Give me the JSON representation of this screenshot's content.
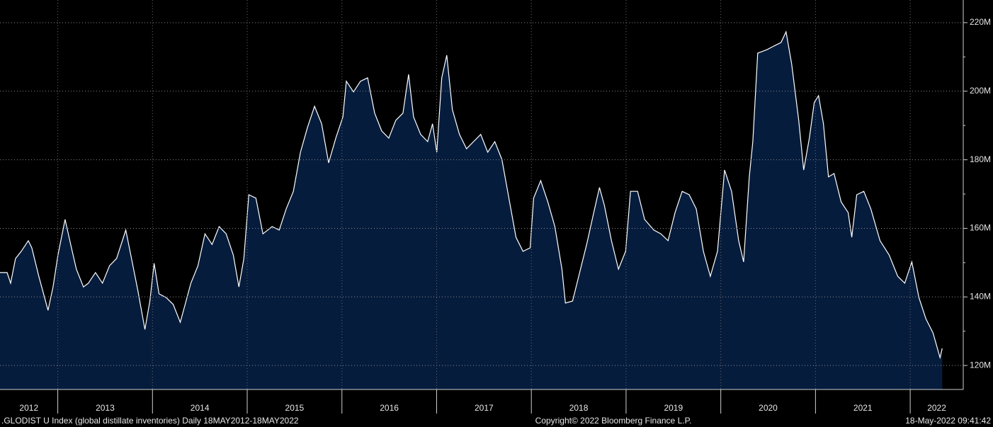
{
  "chart_data": {
    "type": "area",
    "series": [
      {
        "color": "#061c3d",
        "line_color": "#ffffff",
        "x": [
          2012.39,
          2012.465,
          2012.502,
          2012.554,
          2012.614,
          2012.689,
          2012.726,
          2012.8,
          2012.897,
          2012.95,
          2013.002,
          2013.077,
          2013.136,
          2013.196,
          2013.271,
          2013.323,
          2013.398,
          2013.472,
          2013.547,
          2013.621,
          2013.718,
          2013.771,
          2013.845,
          2013.92,
          2013.972,
          2014.017,
          2014.069,
          2014.144,
          2014.218,
          2014.293,
          2014.345,
          2014.405,
          2014.48,
          2014.554,
          2014.629,
          2014.704,
          2014.778,
          2014.853,
          2014.912,
          2014.965,
          2015.017,
          2015.092,
          2015.166,
          2015.263,
          2015.338,
          2015.412,
          2015.487,
          2015.562,
          2015.636,
          2015.711,
          2015.786,
          2015.86,
          2015.935,
          2016.01,
          2016.047,
          2016.122,
          2016.196,
          2016.271,
          2016.346,
          2016.42,
          2016.495,
          2016.569,
          2016.644,
          2016.704,
          2016.756,
          2016.831,
          2016.905,
          2016.957,
          2017.002,
          2017.054,
          2017.107,
          2017.166,
          2017.241,
          2017.316,
          2017.39,
          2017.465,
          2017.539,
          2017.614,
          2017.689,
          2017.763,
          2017.838,
          2017.912,
          2017.987,
          2018.024,
          2018.099,
          2018.174,
          2018.248,
          2018.323,
          2018.36,
          2018.435,
          2018.51,
          2018.584,
          2018.659,
          2018.719,
          2018.771,
          2018.846,
          2018.92,
          2018.995,
          2019.047,
          2019.122,
          2019.196,
          2019.293,
          2019.368,
          2019.443,
          2019.517,
          2019.592,
          2019.666,
          2019.741,
          2019.816,
          2019.89,
          2019.965,
          2020.04,
          2020.114,
          2020.189,
          2020.241,
          2020.301,
          2020.338,
          2020.39,
          2020.487,
          2020.562,
          2020.636,
          2020.689,
          2020.748,
          2020.823,
          2020.875,
          2020.935,
          2020.987,
          2021.032,
          2021.084,
          2021.137,
          2021.196,
          2021.271,
          2021.345,
          2021.383,
          2021.435,
          2021.51,
          2021.584,
          2021.681,
          2021.778,
          2021.868,
          2021.942,
          2022.017,
          2022.092,
          2022.166,
          2022.241,
          2022.315,
          2022.338
        ],
        "values": [
          147.1,
          147.1,
          144.0,
          151.2,
          153.3,
          156.4,
          154.3,
          146.0,
          136.1,
          142.9,
          152.2,
          162.6,
          155.3,
          148.1,
          142.9,
          144.0,
          147.1,
          144.0,
          149.1,
          151.2,
          159.5,
          152.2,
          141.9,
          130.5,
          138.8,
          149.8,
          140.9,
          139.8,
          137.8,
          132.6,
          137.8,
          144.0,
          149.1,
          158.4,
          155.3,
          160.5,
          158.4,
          152.2,
          142.9,
          151.2,
          169.8,
          168.8,
          158.4,
          160.5,
          159.5,
          165.7,
          170.8,
          182.2,
          189.4,
          195.6,
          190.5,
          179.1,
          186.3,
          192.5,
          202.9,
          199.8,
          202.9,
          203.9,
          193.6,
          188.4,
          186.3,
          191.5,
          193.6,
          204.9,
          192.5,
          187.4,
          185.3,
          190.5,
          182.2,
          203.9,
          210.5,
          194.6,
          187.4,
          183.2,
          185.3,
          187.4,
          182.2,
          185.3,
          180.1,
          168.8,
          157.4,
          153.3,
          154.3,
          168.8,
          173.9,
          167.7,
          160.5,
          148.1,
          138.2,
          138.8,
          147.1,
          155.3,
          164.6,
          171.9,
          166.7,
          156.4,
          148.1,
          153.3,
          170.8,
          170.8,
          162.6,
          159.5,
          158.4,
          156.4,
          164.6,
          170.8,
          169.8,
          165.7,
          153.3,
          146.0,
          153.3,
          177.0,
          170.8,
          156.4,
          150.2,
          175.0,
          185.3,
          211.1,
          212.1,
          213.2,
          214.2,
          217.3,
          208.0,
          191.5,
          177.0,
          186.3,
          196.7,
          198.7,
          190.5,
          175.0,
          176.0,
          167.7,
          164.6,
          157.4,
          169.8,
          170.8,
          165.7,
          156.4,
          152.2,
          146.0,
          144.0,
          150.2,
          139.8,
          133.6,
          129.5,
          122.3,
          125.0
        ]
      }
    ],
    "xlim": [
      2012.39,
      2022.56
    ],
    "xticks": [
      2012,
      2013,
      2014,
      2015,
      2016,
      2017,
      2018,
      2019,
      2020,
      2021,
      2022
    ],
    "ylim": [
      113,
      226.6
    ],
    "yticks": [
      {
        "value": 120,
        "label": "120M"
      },
      {
        "value": 140,
        "label": "140M"
      },
      {
        "value": 160,
        "label": "160M"
      },
      {
        "value": 180,
        "label": "180M"
      },
      {
        "value": 200,
        "label": "200M"
      },
      {
        "value": 220,
        "label": "220M"
      }
    ],
    "grid": true,
    "footer_left": ".GLODIST U Index (global distillate inventories)  Daily 18MAY2012-18MAY2022",
    "footer_center": "Copyright© 2022 Bloomberg Finance L.P.",
    "footer_right": "18-May-2022 09:41:42"
  }
}
